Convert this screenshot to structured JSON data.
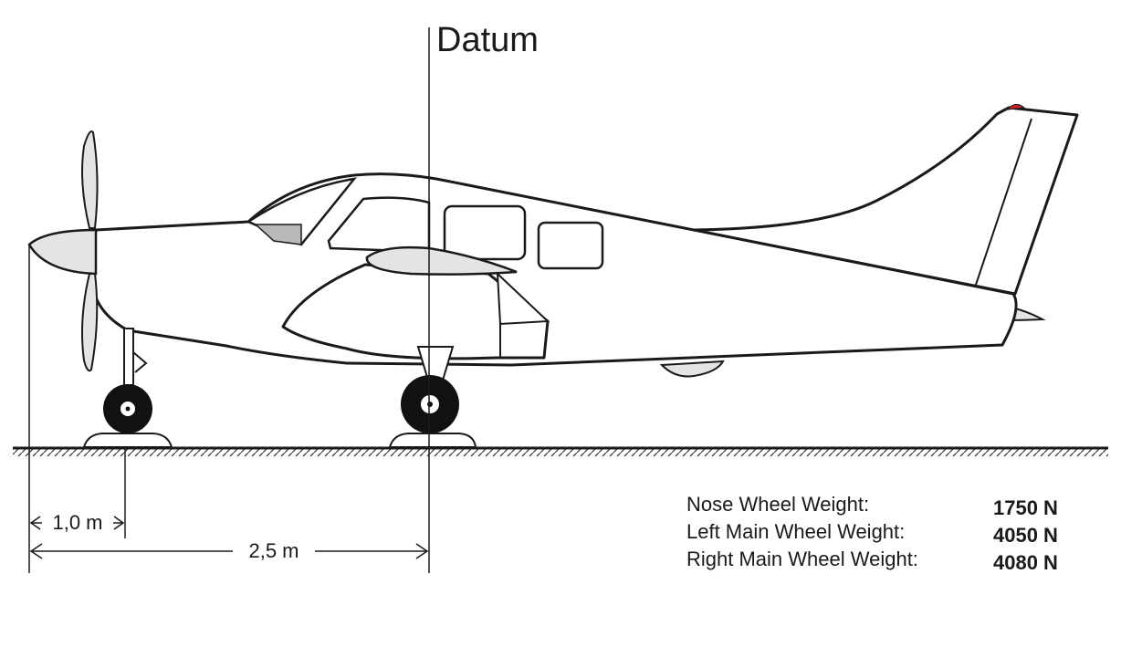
{
  "diagram": {
    "datum_label": "Datum",
    "dimensions": {
      "nose_to_nosewheel": "1,0 m",
      "nose_to_datum": "2,5 m"
    },
    "weights": [
      {
        "label": "Nose Wheel Weight:",
        "value": "1750 N"
      },
      {
        "label": "Left Main Wheel Weight:",
        "value": "4050 N"
      },
      {
        "label": "Right Main Wheel Weight:",
        "value": "4080 N"
      }
    ],
    "colors": {
      "outline": "#1a1a1a",
      "fill_light": "#e4e4e4",
      "fill_window": "#b9b9b9",
      "beacon": "#d0202a"
    }
  }
}
